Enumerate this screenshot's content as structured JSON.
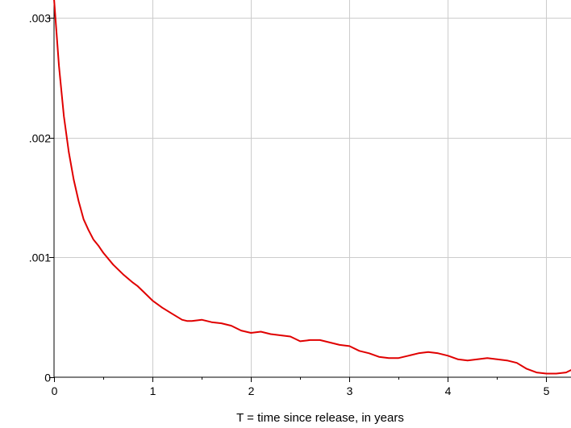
{
  "chart_data": {
    "type": "line",
    "title": "",
    "xlabel": "T = time since release, in years",
    "ylabel": "",
    "xlim": [
      0,
      5.25
    ],
    "ylim": [
      0,
      0.00315
    ],
    "grid": true,
    "x_ticks": [
      0,
      1,
      2,
      3,
      4,
      5
    ],
    "x_tick_labels": [
      "0",
      "1",
      "2",
      "3",
      "4",
      "5"
    ],
    "y_ticks": [
      0,
      0.001,
      0.002,
      0.003
    ],
    "y_tick_labels": [
      "0",
      ".001",
      ".002",
      ".003"
    ],
    "series": [
      {
        "color": "#e00000",
        "x": [
          0.0,
          0.05,
          0.1,
          0.15,
          0.2,
          0.25,
          0.3,
          0.35,
          0.4,
          0.45,
          0.5,
          0.6,
          0.7,
          0.8,
          0.85,
          0.9,
          1.0,
          1.1,
          1.2,
          1.3,
          1.35,
          1.4,
          1.5,
          1.6,
          1.7,
          1.8,
          1.9,
          2.0,
          2.1,
          2.2,
          2.3,
          2.4,
          2.5,
          2.6,
          2.7,
          2.8,
          2.9,
          3.0,
          3.1,
          3.2,
          3.3,
          3.4,
          3.5,
          3.6,
          3.7,
          3.8,
          3.9,
          4.0,
          4.1,
          4.2,
          4.3,
          4.4,
          4.5,
          4.6,
          4.7,
          4.8,
          4.9,
          5.0,
          5.1,
          5.2,
          5.25
        ],
        "y": [
          0.00316,
          0.0026,
          0.00218,
          0.00188,
          0.00165,
          0.00147,
          0.00132,
          0.00123,
          0.00115,
          0.0011,
          0.00104,
          0.00094,
          0.00086,
          0.00079,
          0.00076,
          0.00072,
          0.00064,
          0.00058,
          0.00053,
          0.00048,
          0.00047,
          0.00047,
          0.00048,
          0.00046,
          0.00045,
          0.00043,
          0.00039,
          0.00037,
          0.00038,
          0.00036,
          0.00035,
          0.00034,
          0.0003,
          0.00031,
          0.00031,
          0.00029,
          0.00027,
          0.00026,
          0.00022,
          0.0002,
          0.00017,
          0.00016,
          0.00016,
          0.00018,
          0.0002,
          0.00021,
          0.0002,
          0.00018,
          0.00015,
          0.00014,
          0.00015,
          0.00016,
          0.00015,
          0.00014,
          0.00012,
          7e-05,
          4e-05,
          3e-05,
          3e-05,
          4e-05,
          6e-05
        ]
      }
    ]
  }
}
